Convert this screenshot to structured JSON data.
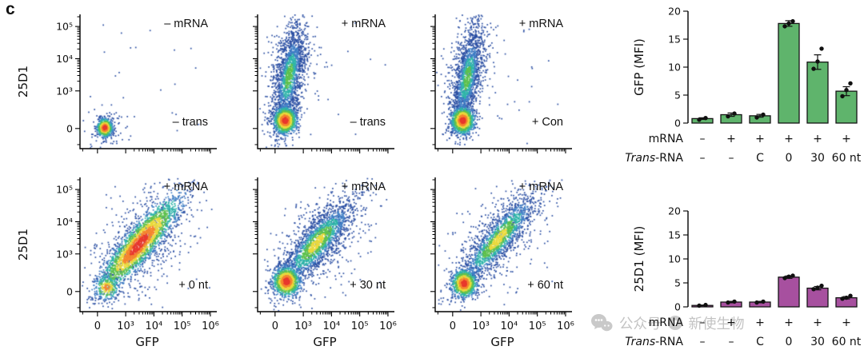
{
  "panel_label": "c",
  "watermark": {
    "text_left": "公众号",
    "text_right": "新使生物"
  },
  "colors": {
    "axis": "#000000",
    "dot": "#111111",
    "gfp_bar": "#5fb46c",
    "d25_bar": "#a7509f",
    "watermark": "#c3c3c3",
    "ramp": [
      "#e8392e",
      "#f5862f",
      "#ead93c",
      "#5ec14d",
      "#2fb5a9",
      "#3f7fc6",
      "#2b4fa3"
    ]
  },
  "chart_data": [
    {
      "type": "scatter",
      "subtype": "flow_cytometry_density",
      "xlabel": "GFP",
      "ylabel": "25D1",
      "x_ticks": [
        {
          "t": "0",
          "f": 0.13
        },
        {
          "t": "10³",
          "f": 0.34
        },
        {
          "t": "10⁴",
          "f": 0.55
        },
        {
          "t": "10⁵",
          "f": 0.76
        },
        {
          "t": "10⁶",
          "f": 0.97
        }
      ],
      "y_ticks": [
        {
          "t": "10⁵",
          "f": 0.09
        },
        {
          "t": "10⁴",
          "f": 0.33
        },
        {
          "t": "10³",
          "f": 0.57
        },
        {
          "t": "0",
          "f": 0.85
        }
      ],
      "plots": [
        {
          "row": 0,
          "col": 0,
          "top_label": "– mRNA",
          "bottom_label": "– trans",
          "seed": 11,
          "clusters": [
            {
              "cx": 0.5,
              "cy": 0.5,
              "su": 0.28,
              "sv": 0.26,
              "a": 0,
              "n": 22,
              "cap": 6
            },
            {
              "cx": 0.19,
              "cy": 0.84,
              "su": 0.08,
              "sv": 0.08,
              "a": 0,
              "n": 80,
              "cap": 5
            },
            {
              "cx": 0.185,
              "cy": 0.845,
              "su": 0.028,
              "sv": 0.034,
              "a": 0,
              "n": 650,
              "cap": 0
            }
          ]
        },
        {
          "row": 0,
          "col": 1,
          "top_label": "+ mRNA",
          "bottom_label": "– trans",
          "seed": 22,
          "clusters": [
            {
              "cx": 0.5,
              "cy": 0.5,
              "su": 0.3,
              "sv": 0.28,
              "a": 0,
              "n": 30,
              "cap": 6
            },
            {
              "cx": 0.24,
              "cy": 0.44,
              "su": 0.24,
              "sv": 0.09,
              "a": 80,
              "n": 380,
              "cap": 5
            },
            {
              "cx": 0.235,
              "cy": 0.46,
              "su": 0.21,
              "sv": 0.05,
              "a": 80,
              "n": 1500,
              "cap": 3
            },
            {
              "cx": 0.205,
              "cy": 0.79,
              "su": 0.042,
              "sv": 0.05,
              "a": 0,
              "n": 1100,
              "cap": 0
            }
          ]
        },
        {
          "row": 0,
          "col": 2,
          "top_label": "+ mRNA",
          "bottom_label": "+ Con",
          "seed": 33,
          "clusters": [
            {
              "cx": 0.5,
              "cy": 0.5,
              "su": 0.3,
              "sv": 0.28,
              "a": 0,
              "n": 26,
              "cap": 6
            },
            {
              "cx": 0.245,
              "cy": 0.45,
              "su": 0.23,
              "sv": 0.085,
              "a": 80,
              "n": 340,
              "cap": 5
            },
            {
              "cx": 0.24,
              "cy": 0.47,
              "su": 0.2,
              "sv": 0.048,
              "a": 80,
              "n": 1400,
              "cap": 3
            },
            {
              "cx": 0.205,
              "cy": 0.79,
              "su": 0.042,
              "sv": 0.05,
              "a": 0,
              "n": 1050,
              "cap": 0
            }
          ]
        },
        {
          "row": 1,
          "col": 0,
          "top_label": "+ mRNA",
          "bottom_label": "+ 0 nt",
          "seed": 44,
          "clusters": [
            {
              "cx": 0.5,
              "cy": 0.45,
              "su": 0.32,
              "sv": 0.28,
              "a": 0,
              "n": 60,
              "cap": 6
            },
            {
              "cx": 0.45,
              "cy": 0.49,
              "su": 0.26,
              "sv": 0.13,
              "a": 50,
              "n": 620,
              "cap": 5
            },
            {
              "cx": 0.44,
              "cy": 0.5,
              "su": 0.22,
              "sv": 0.055,
              "a": 50,
              "n": 2400,
              "cap": 0
            },
            {
              "cx": 0.2,
              "cy": 0.82,
              "su": 0.05,
              "sv": 0.05,
              "a": 0,
              "n": 240,
              "cap": 1
            }
          ]
        },
        {
          "row": 1,
          "col": 1,
          "top_label": "+ mRNA",
          "bottom_label": "+ 30 nt",
          "seed": 55,
          "clusters": [
            {
              "cx": 0.5,
              "cy": 0.45,
              "su": 0.3,
              "sv": 0.27,
              "a": 0,
              "n": 50,
              "cap": 6
            },
            {
              "cx": 0.45,
              "cy": 0.48,
              "su": 0.24,
              "sv": 0.13,
              "a": 50,
              "n": 520,
              "cap": 5
            },
            {
              "cx": 0.44,
              "cy": 0.49,
              "su": 0.2,
              "sv": 0.06,
              "a": 50,
              "n": 1700,
              "cap": 2
            },
            {
              "cx": 0.215,
              "cy": 0.775,
              "su": 0.05,
              "sv": 0.055,
              "a": 0,
              "n": 1000,
              "cap": 0
            }
          ]
        },
        {
          "row": 1,
          "col": 2,
          "top_label": "+ mRNA",
          "bottom_label": "+ 60 nt",
          "seed": 66,
          "clusters": [
            {
              "cx": 0.52,
              "cy": 0.44,
              "su": 0.3,
              "sv": 0.26,
              "a": 0,
              "n": 45,
              "cap": 6
            },
            {
              "cx": 0.47,
              "cy": 0.46,
              "su": 0.25,
              "sv": 0.12,
              "a": 50,
              "n": 480,
              "cap": 5
            },
            {
              "cx": 0.47,
              "cy": 0.46,
              "su": 0.22,
              "sv": 0.055,
              "a": 50,
              "n": 1500,
              "cap": 2
            },
            {
              "cx": 0.215,
              "cy": 0.79,
              "su": 0.045,
              "sv": 0.05,
              "a": 0,
              "n": 900,
              "cap": 0
            }
          ]
        }
      ]
    },
    {
      "type": "bar",
      "ylabel": "GFP (MFI)",
      "ylim": [
        0,
        20
      ],
      "yticks": [
        0,
        5,
        10,
        15,
        20
      ],
      "values": [
        0.8,
        1.5,
        1.3,
        17.8,
        10.9,
        5.7
      ],
      "errors": [
        0.15,
        0.3,
        0.25,
        0.5,
        1.3,
        0.8
      ],
      "points": [
        [
          0.6,
          0.9
        ],
        [
          1.2,
          1.7
        ],
        [
          1.0,
          1.5
        ],
        [
          17.3,
          17.8,
          18.2
        ],
        [
          9.7,
          11.0,
          13.3
        ],
        [
          4.8,
          5.9,
          7.1
        ]
      ],
      "color_key": "gfp_bar",
      "row1_label": "mRNA",
      "row1": [
        "–",
        "+",
        "+",
        "+",
        "+",
        "+"
      ],
      "row2_label_italic": "Trans",
      "row2_label_rest": "-RNA",
      "row2": [
        "–",
        "–",
        "C",
        "0",
        "30",
        "60 nt"
      ]
    },
    {
      "type": "bar",
      "ylabel": "25D1 (MFI)",
      "ylim": [
        0,
        20
      ],
      "yticks": [
        0,
        5,
        10,
        15,
        20
      ],
      "values": [
        0.3,
        1.0,
        1.0,
        6.2,
        3.9,
        1.9
      ],
      "errors": [
        0.08,
        0.15,
        0.15,
        0.25,
        0.35,
        0.25
      ],
      "points": [
        [
          0.25,
          0.4
        ],
        [
          0.9,
          1.1
        ],
        [
          0.9,
          1.1
        ],
        [
          6.0,
          6.3,
          6.5
        ],
        [
          3.7,
          4.0,
          4.4
        ],
        [
          1.7,
          1.9,
          2.3
        ]
      ],
      "color_key": "d25_bar",
      "row1_label": "mRNA",
      "row1": [
        "–",
        "+",
        "+",
        "+",
        "+",
        "+"
      ],
      "row2_label_italic": "Trans",
      "row2_label_rest": "-RNA",
      "row2": [
        "–",
        "–",
        "C",
        "0",
        "30",
        "60 nt"
      ]
    }
  ]
}
